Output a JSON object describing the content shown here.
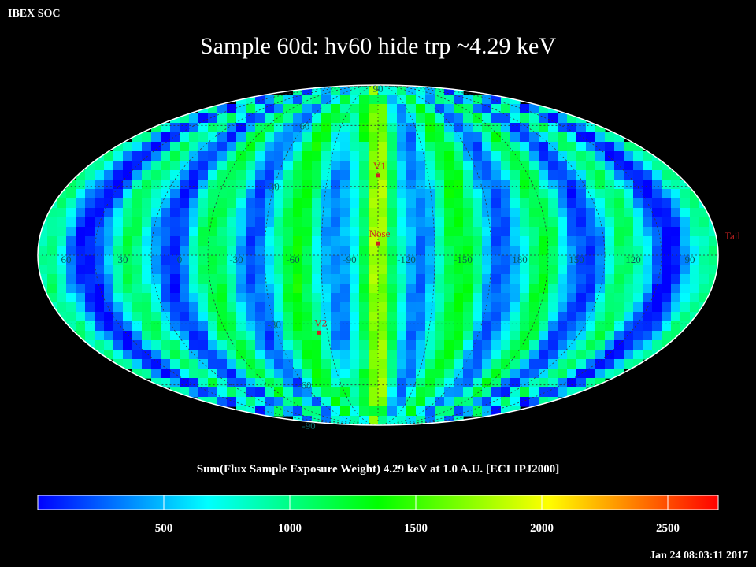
{
  "header": {
    "corner_label": "IBEX SOC",
    "title": "Sample 60d: hv60 hide trp ~4.29 keV"
  },
  "colorbar": {
    "title": "Sum(Flux Sample Exposure Weight)  4.29 keV at 1.0 A.U. [ECLIPJ2000]",
    "range": [
      0,
      2700
    ],
    "ticks": [
      {
        "value": 500,
        "label": "500"
      },
      {
        "value": 1000,
        "label": "1000"
      },
      {
        "value": 1500,
        "label": "1500"
      },
      {
        "value": 2000,
        "label": "2000"
      },
      {
        "value": 2500,
        "label": "2500"
      }
    ],
    "colors": [
      "#0000ff",
      "#00ffff",
      "#00ff00",
      "#ffff00",
      "#ff0000"
    ]
  },
  "map": {
    "projection": "mollweide",
    "center_longitude": 255,
    "graticule_longitude_step": 30,
    "graticule_latitude_step": 30,
    "latitude_labels": [
      {
        "lat": 90,
        "label": "90"
      },
      {
        "lat": 60,
        "label": "60"
      },
      {
        "lat": 30,
        "label": "30"
      },
      {
        "lat": -30,
        "label": "-30"
      },
      {
        "lat": -60,
        "label": "-60"
      },
      {
        "lat": -90,
        "label": "-90"
      }
    ],
    "longitude_labels": [
      {
        "lon": 60,
        "label": "60"
      },
      {
        "lon": 30,
        "label": "30"
      },
      {
        "lon": 0,
        "label": "0"
      },
      {
        "lon": -30,
        "label": "-30"
      },
      {
        "lon": -60,
        "label": "-60"
      },
      {
        "lon": -90,
        "label": "-90"
      },
      {
        "lon": -120,
        "label": "-120"
      },
      {
        "lon": -150,
        "label": "-150"
      },
      {
        "lon": 180,
        "label": "180"
      },
      {
        "lon": 150,
        "label": "150"
      },
      {
        "lon": 120,
        "label": "120"
      },
      {
        "lon": 90,
        "label": "90"
      }
    ],
    "markers": [
      {
        "name": "V1",
        "lon": 255,
        "lat": 35
      },
      {
        "name": "Nose",
        "lon": 255,
        "lat": 5
      },
      {
        "name": "V2",
        "lon": 290,
        "lat": -34
      },
      {
        "name": "Tail",
        "lon": 75,
        "lat": -5
      }
    ],
    "marker_color": "#cc2222"
  },
  "timestamp": "Jan 24 08:03:11 2017"
}
